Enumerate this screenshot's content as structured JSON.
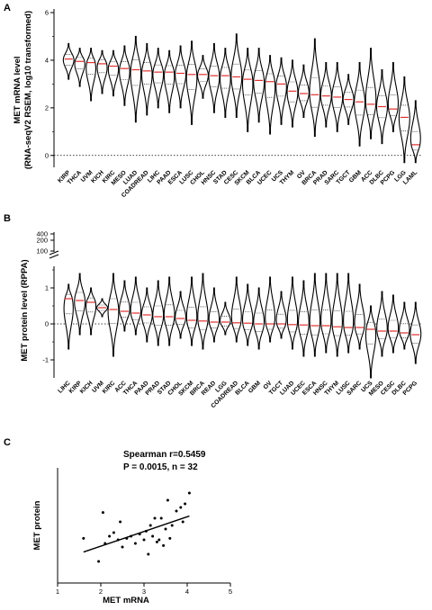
{
  "chart_data": [
    {
      "panel": "A",
      "type": "violin",
      "ylabel": "MET mRNA  level\n(RNA-seqV2 RSEM, log10 transformed)",
      "ylim": [
        -0.5,
        6
      ],
      "yticks": [
        "0",
        "2",
        "4",
        "6"
      ],
      "reference_line": 0,
      "grid": false,
      "categories": [
        "KIRP",
        "THCA",
        "UVM",
        "KICH",
        "KIRC",
        "MESO",
        "LUAD",
        "COADREAD",
        "LIHC",
        "PAAD",
        "ESCA",
        "LUSC",
        "CHOL",
        "HNSC",
        "STAD",
        "CESC",
        "SKCM",
        "BLCA",
        "UCEC",
        "UCS",
        "THYM",
        "OV",
        "BRCA",
        "PRAD",
        "SARC",
        "TGCT",
        "GBM",
        "ACC",
        "DLBC",
        "PCPG",
        "LGG",
        "LAML"
      ],
      "median": [
        4.05,
        3.95,
        3.9,
        3.85,
        3.75,
        3.65,
        3.6,
        3.55,
        3.5,
        3.5,
        3.45,
        3.4,
        3.4,
        3.35,
        3.35,
        3.3,
        3.2,
        3.15,
        3.1,
        3.0,
        2.7,
        2.6,
        2.55,
        2.5,
        2.45,
        2.35,
        2.25,
        2.15,
        2.05,
        1.95,
        1.6,
        0.45
      ],
      "min": [
        3.2,
        2.9,
        2.3,
        2.6,
        2.5,
        2.1,
        1.4,
        1.7,
        2.0,
        1.8,
        2.0,
        1.3,
        2.4,
        1.8,
        1.6,
        1.6,
        1.0,
        1.4,
        0.9,
        1.3,
        1.2,
        1.6,
        0.8,
        1.2,
        1.0,
        1.3,
        0.4,
        0.7,
        0.5,
        1.0,
        -0.3,
        -0.3
      ],
      "max": [
        4.7,
        4.5,
        4.5,
        4.4,
        4.4,
        4.6,
        5.0,
        4.7,
        4.5,
        4.4,
        4.6,
        4.8,
        4.2,
        4.7,
        4.5,
        5.1,
        4.5,
        4.5,
        4.2,
        4.1,
        4.0,
        3.8,
        4.9,
        3.9,
        3.9,
        3.4,
        3.9,
        4.5,
        3.6,
        3.9,
        3.3,
        2.3
      ]
    },
    {
      "panel": "B",
      "type": "violin",
      "ylabel": "MET protein level (RPPA)",
      "ylim": [
        -1.5,
        1.5
      ],
      "yticks": [
        "-1",
        "0",
        "1"
      ],
      "broken_axis_ticks": [
        "100",
        "200",
        "400"
      ],
      "reference_line": 0,
      "grid": false,
      "categories": [
        "LIHC",
        "KIRP",
        "KICH",
        "UVM",
        "KIRC",
        "ACC",
        "THCA",
        "PAAD",
        "PRAD",
        "STAD",
        "CHOL",
        "SKCM",
        "BRCA",
        "READ",
        "LGG",
        "COADREAD",
        "BLCA",
        "GBM",
        "OV",
        "TGCT",
        "LUAD",
        "UCEC",
        "ESCA",
        "HNSC",
        "THYM",
        "LUSC",
        "SARC",
        "UCS",
        "MESO",
        "CESC",
        "DLBC",
        "PCPG"
      ],
      "median": [
        0.7,
        0.65,
        0.6,
        0.45,
        0.4,
        0.35,
        0.3,
        0.25,
        0.2,
        0.2,
        0.15,
        0.1,
        0.08,
        0.05,
        0.05,
        0.03,
        0.02,
        0.0,
        0.0,
        0.0,
        -0.02,
        -0.03,
        -0.05,
        -0.05,
        -0.08,
        -0.1,
        -0.1,
        -0.15,
        -0.2,
        -0.2,
        -0.25,
        -0.3
      ],
      "min": [
        -0.7,
        -0.3,
        -0.3,
        0.2,
        -0.9,
        -0.2,
        -0.3,
        -0.5,
        -0.6,
        -0.6,
        -0.4,
        -0.6,
        -0.7,
        -0.5,
        -0.3,
        -0.5,
        -0.6,
        -0.7,
        -0.5,
        -0.4,
        -0.7,
        -0.9,
        -0.9,
        -0.8,
        -0.9,
        -0.8,
        -0.7,
        -1.5,
        -0.9,
        -0.8,
        -0.7,
        -1.1
      ],
      "max": [
        1.1,
        1.4,
        1.0,
        0.7,
        1.4,
        1.2,
        1.3,
        1.0,
        1.2,
        1.3,
        0.9,
        1.3,
        1.4,
        1.0,
        0.6,
        1.3,
        1.1,
        1.0,
        1.3,
        0.9,
        1.3,
        1.2,
        1.4,
        1.4,
        1.4,
        1.4,
        1.1,
        0.5,
        0.9,
        0.8,
        0.6,
        0.6
      ]
    },
    {
      "panel": "C",
      "type": "scatter",
      "xlabel": "MET mRNA",
      "ylabel": "MET protein",
      "xlim": [
        1,
        5
      ],
      "ylim": [
        -0.6,
        1.0
      ],
      "xticks": [
        "1",
        "2",
        "3",
        "4",
        "5"
      ],
      "annotation_1": "Spearman r=0.5459",
      "annotation_2": "P = 0.0015, n = 32",
      "fit_line": {
        "x1": 1.6,
        "y1": -0.17,
        "x2": 4.05,
        "y2": 0.33
      },
      "points": [
        {
          "x": 1.6,
          "y": 0.02
        },
        {
          "x": 1.95,
          "y": -0.3
        },
        {
          "x": 2.05,
          "y": 0.38
        },
        {
          "x": 2.1,
          "y": -0.05
        },
        {
          "x": 2.2,
          "y": 0.05
        },
        {
          "x": 2.3,
          "y": 0.1
        },
        {
          "x": 2.4,
          "y": 0.0
        },
        {
          "x": 2.45,
          "y": 0.25
        },
        {
          "x": 2.5,
          "y": -0.1
        },
        {
          "x": 2.6,
          "y": 0.02
        },
        {
          "x": 2.7,
          "y": 0.05
        },
        {
          "x": 2.8,
          "y": -0.05
        },
        {
          "x": 2.9,
          "y": 0.08
        },
        {
          "x": 3.0,
          "y": 0.0
        },
        {
          "x": 3.05,
          "y": 0.12
        },
        {
          "x": 3.1,
          "y": -0.2
        },
        {
          "x": 3.15,
          "y": 0.2
        },
        {
          "x": 3.2,
          "y": 0.05
        },
        {
          "x": 3.25,
          "y": 0.3
        },
        {
          "x": 3.3,
          "y": -0.03
        },
        {
          "x": 3.35,
          "y": 0.0
        },
        {
          "x": 3.4,
          "y": 0.3
        },
        {
          "x": 3.45,
          "y": -0.08
        },
        {
          "x": 3.5,
          "y": 0.15
        },
        {
          "x": 3.55,
          "y": 0.55
        },
        {
          "x": 3.6,
          "y": 0.02
        },
        {
          "x": 3.65,
          "y": 0.2
        },
        {
          "x": 3.75,
          "y": 0.4
        },
        {
          "x": 3.85,
          "y": 0.45
        },
        {
          "x": 3.9,
          "y": 0.25
        },
        {
          "x": 3.95,
          "y": 0.5
        },
        {
          "x": 4.05,
          "y": 0.65
        }
      ]
    }
  ],
  "colors": {
    "ink": "#000000",
    "median": "#e03030",
    "quartile": "#000000"
  }
}
